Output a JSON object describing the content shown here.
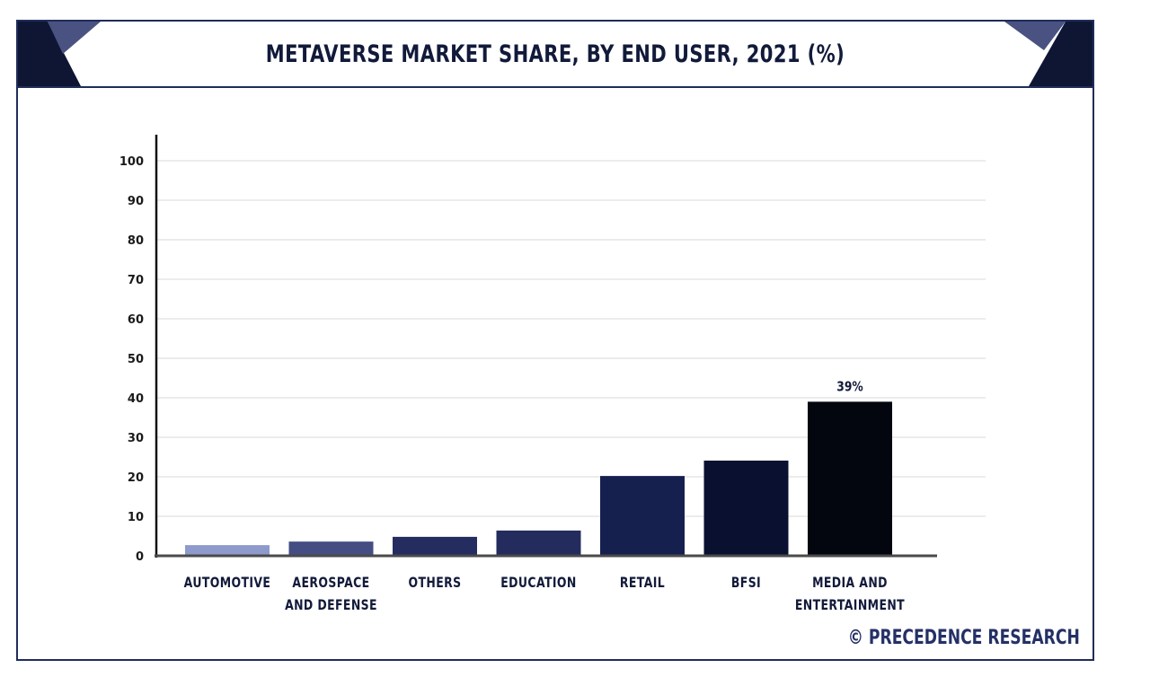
{
  "chart_data": {
    "type": "bar",
    "title": "METAVERSE MARKET SHARE, BY END USER, 2021 (%)",
    "xlabel": "",
    "ylabel": "",
    "ylim": [
      0,
      100
    ],
    "yticks": [
      0,
      10,
      20,
      30,
      40,
      50,
      60,
      70,
      80,
      90,
      100
    ],
    "grid": true,
    "legend": "none",
    "categories": [
      [
        "AUTOMOTIVE"
      ],
      [
        "AEROSPACE",
        "AND DEFENSE"
      ],
      [
        "OTHERS"
      ],
      [
        "EDUCATION"
      ],
      [
        "RETAIL"
      ],
      [
        "BFSI"
      ],
      [
        "MEDIA AND",
        "ENTERTAINMENT"
      ]
    ],
    "values": [
      2.7,
      3.6,
      4.8,
      6.4,
      20.2,
      24.1,
      39
    ],
    "colors": [
      "#8d9acb",
      "#454e82",
      "#252d60",
      "#232c5c",
      "#16204f",
      "#0a1130",
      "#03050f"
    ],
    "data_labels": [
      null,
      null,
      null,
      null,
      null,
      null,
      "39%"
    ]
  },
  "header": {
    "title": "METAVERSE MARKET SHARE, BY END USER, 2021 (%)",
    "accent_dark": "#0e1633",
    "accent_light": "#4a5282"
  },
  "footer": {
    "credit": "© PRECEDENCE RESEARCH"
  }
}
